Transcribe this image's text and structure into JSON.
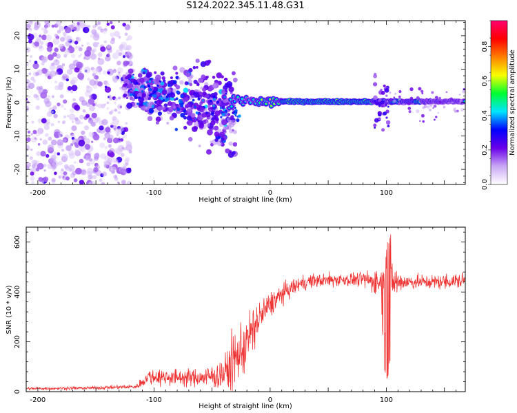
{
  "title": "S124.2022.345.11.48.G31",
  "chart_data": [
    {
      "type": "heatmap",
      "xlabel": "Height of straight line (km)",
      "ylabel": "Frequency (Hz)",
      "xlim": [
        -210,
        168
      ],
      "ylim": [
        -24.5,
        24.5
      ],
      "xticks": [
        -200,
        -100,
        0,
        100
      ],
      "yticks": [
        -20,
        -10,
        0,
        10,
        20
      ],
      "colorbar": {
        "label": "Normalized spectral amplitude",
        "range": [
          0.0,
          0.95
        ],
        "ticks": [
          "0.0",
          "0.2",
          "0.4",
          "0.6",
          "0.8"
        ],
        "colormap": [
          "#ffffff",
          "#c9a8f5",
          "#6a00e8",
          "#0000ff",
          "#00e5ff",
          "#00ff30",
          "#f8ff00",
          "#ff8000",
          "#ff0000",
          "#ff0070"
        ]
      },
      "features": {
        "noise_region_x": [
          -210,
          -125
        ],
        "scatter_band_x": [
          -125,
          -30
        ],
        "line_x": [
          -30,
          168
        ],
        "line_frequency": 0.3
      },
      "grid": false
    },
    {
      "type": "line",
      "xlabel": "Height of straight line (km)",
      "ylabel": "SNR (10 * v/v)",
      "xlim": [
        -210,
        168
      ],
      "ylim": [
        0,
        660
      ],
      "xticks": [
        -200,
        -100,
        0,
        100
      ],
      "yticks": [
        0,
        200,
        400,
        600
      ],
      "color": "#ee3333",
      "profile": {
        "x": [
          -210,
          -150,
          -115,
          -105,
          -60,
          -40,
          -30,
          -20,
          -10,
          0,
          10,
          20,
          30,
          40,
          60,
          80,
          95,
          100,
          105,
          120,
          140,
          168
        ],
        "y": [
          12,
          15,
          20,
          60,
          55,
          70,
          130,
          200,
          290,
          350,
          390,
          420,
          440,
          445,
          450,
          450,
          440,
          330,
          440,
          440,
          440,
          445
        ],
        "noise": [
          5,
          6,
          8,
          30,
          30,
          60,
          110,
          100,
          70,
          45,
          35,
          30,
          25,
          25,
          25,
          25,
          60,
          300,
          60,
          25,
          25,
          30
        ]
      },
      "grid": false
    }
  ]
}
